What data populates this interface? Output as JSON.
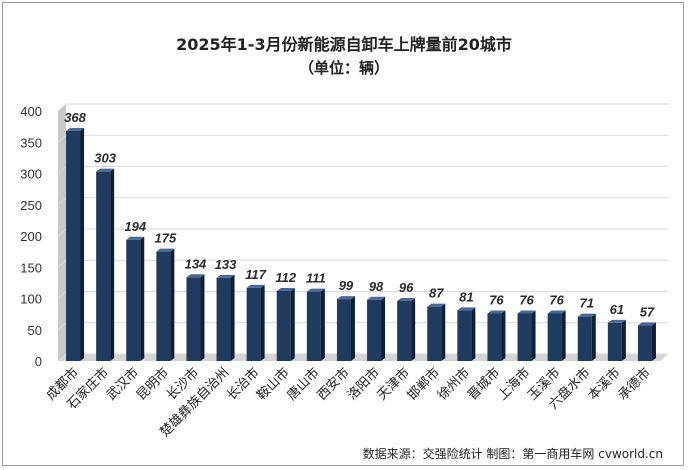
{
  "chart_data": {
    "type": "bar",
    "title": "2025年1-3月份新能源自卸车上牌量前20城市",
    "subtitle": "（单位：辆）",
    "categories": [
      "成都市",
      "石家庄市",
      "武汉市",
      "昆明市",
      "长沙市",
      "楚雄彝族自治州",
      "长治市",
      "鞍山市",
      "唐山市",
      "西安市",
      "洛阳市",
      "天津市",
      "邯郸市",
      "徐州市",
      "晋城市",
      "上海市",
      "玉溪市",
      "六盘水市",
      "本溪市",
      "承德市"
    ],
    "values": [
      368,
      303,
      194,
      175,
      134,
      133,
      117,
      112,
      111,
      99,
      98,
      96,
      87,
      81,
      76,
      76,
      76,
      71,
      61,
      57
    ],
    "yticks": [
      "0",
      "50",
      "100",
      "150",
      "200",
      "250",
      "300",
      "350",
      "400"
    ],
    "ylim": [
      0,
      400
    ],
    "xlabel": "",
    "ylabel": "",
    "grid": true,
    "legend": "none",
    "colors": {
      "bar_front": "#1f3b60",
      "bar_side": "#0f1f35",
      "bar_top": "#4a6a94",
      "wall": "#c9c9c9",
      "floor": "#d4d4d4"
    }
  },
  "source": "数据来源：交强险统计 制图：第一商用车网 cvworld.cn"
}
